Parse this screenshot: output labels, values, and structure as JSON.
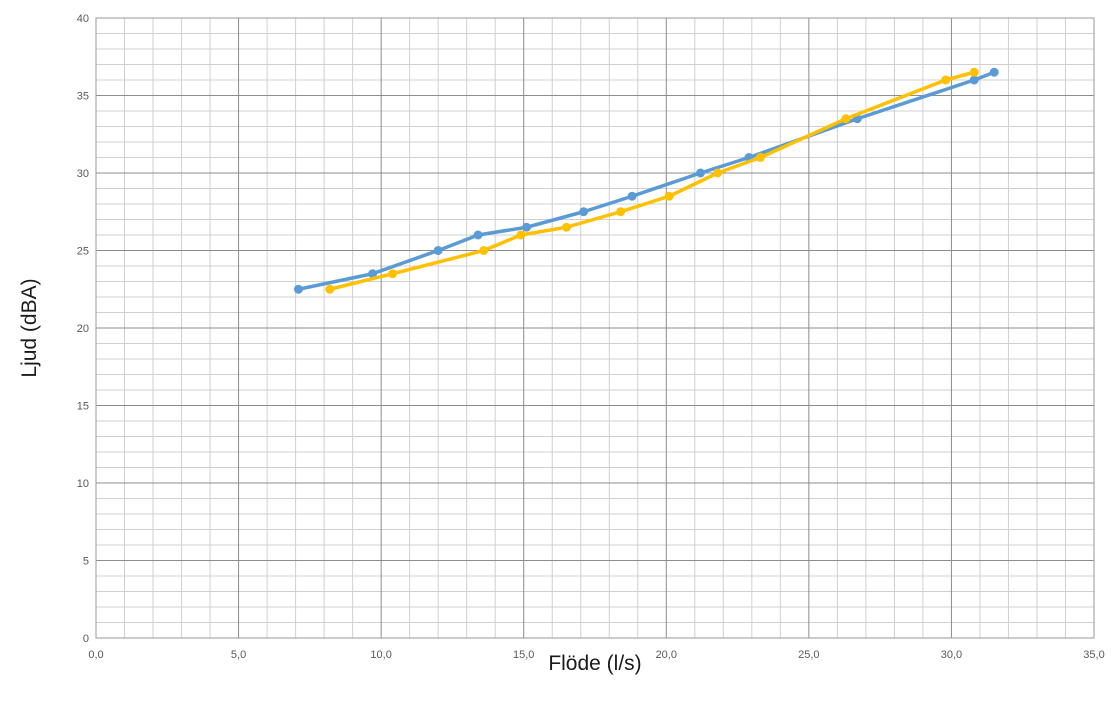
{
  "chart_data": {
    "type": "line",
    "title": "",
    "xlabel": "Flöde (l/s)",
    "ylabel": "Ljud (dBA)",
    "xlim": [
      0,
      35
    ],
    "ylim": [
      0,
      40
    ],
    "x_ticks": [
      "0,0",
      "5,0",
      "10,0",
      "15,0",
      "20,0",
      "25,0",
      "30,0",
      "35,0"
    ],
    "y_ticks": [
      "0",
      "5",
      "10",
      "15",
      "20",
      "25",
      "30",
      "35",
      "40"
    ],
    "grid": true,
    "legend": "none",
    "series": [
      {
        "color": "#5b9bd5",
        "points": [
          [
            7.1,
            22.5
          ],
          [
            9.7,
            23.5
          ],
          [
            12.0,
            25.0
          ],
          [
            13.4,
            26.0
          ],
          [
            15.1,
            26.5
          ],
          [
            17.1,
            27.5
          ],
          [
            18.8,
            28.5
          ],
          [
            21.2,
            30.0
          ],
          [
            22.9,
            31.0
          ],
          [
            26.7,
            33.5
          ],
          [
            30.8,
            36.0
          ],
          [
            31.5,
            36.5
          ]
        ]
      },
      {
        "color": "#ffc000",
        "points": [
          [
            8.2,
            22.5
          ],
          [
            10.4,
            23.5
          ],
          [
            13.6,
            25.0
          ],
          [
            14.9,
            26.0
          ],
          [
            16.5,
            26.5
          ],
          [
            18.4,
            27.5
          ],
          [
            20.1,
            28.5
          ],
          [
            21.8,
            30.0
          ],
          [
            23.3,
            31.0
          ],
          [
            26.3,
            33.5
          ],
          [
            29.8,
            36.0
          ],
          [
            30.8,
            36.5
          ]
        ]
      }
    ]
  }
}
